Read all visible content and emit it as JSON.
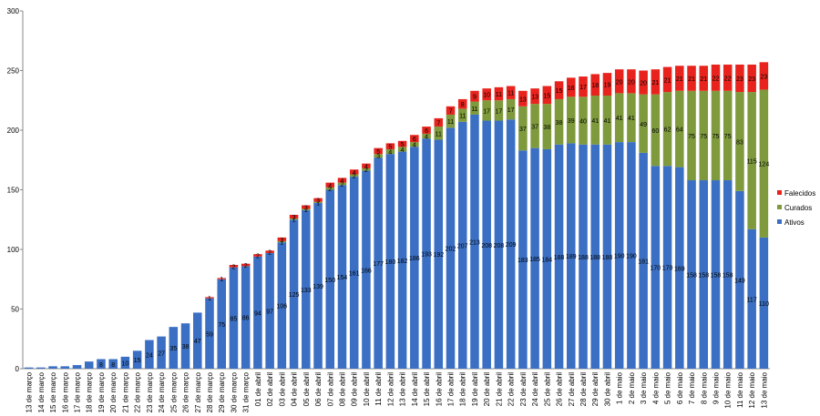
{
  "chart_data": {
    "type": "stacked-bar",
    "categories": [
      "13 de março",
      "14 de março",
      "15 de março",
      "16 de março",
      "17 de março",
      "18 de março",
      "19 de março",
      "20 de março",
      "21 de março",
      "22 de março",
      "23 de março",
      "24 de março",
      "25 de março",
      "26 de março",
      "27 de março",
      "28 de março",
      "29 de março",
      "30 de março",
      "31 de março",
      "01 de abril",
      "02 de abril",
      "03 de abril",
      "04 de abril",
      "05 de abril",
      "06 de abril",
      "07 de abril",
      "08 de abril",
      "09 de abril",
      "10 de abril",
      "11 de abril",
      "12 de abril",
      "13 de abril",
      "14 de abril",
      "15 de abril",
      "16 de abril",
      "17 de abril",
      "18 de abril",
      "19 de abril",
      "20 de abril",
      "21 de abril",
      "22 de abril",
      "23 de abril",
      "24 de abril",
      "25 de abril",
      "26 de abril",
      "27 de abril",
      "28 de abril",
      "29 de abril",
      "30 de abril",
      "1 de maio",
      "2 de maio",
      "3 de maio",
      "4 de maio",
      "5 de maio",
      "6 de maio",
      "7 de maio",
      "8 de maio",
      "9 de maio",
      "10 de maio",
      "11 de maio",
      "12 de maio",
      "13 de maio"
    ],
    "series": [
      {
        "name": "Ativos",
        "color": "#3a6fc4",
        "values": [
          1,
          1,
          2,
          2,
          3,
          6,
          8,
          8,
          10,
          15,
          24,
          27,
          35,
          38,
          47,
          59,
          75,
          85,
          86,
          94,
          97,
          106,
          125,
          133,
          139,
          150,
          154,
          161,
          166,
          177,
          180,
          182,
          186,
          193,
          192,
          202,
          207,
          213,
          208,
          208,
          209,
          183,
          185,
          184,
          188,
          189,
          188,
          188,
          188,
          190,
          190,
          181,
          170,
          170,
          169,
          158,
          158,
          158,
          158,
          149,
          117,
          110
        ]
      },
      {
        "name": "Curados",
        "color": "#7e9a3c",
        "values": [
          0,
          0,
          0,
          0,
          0,
          0,
          0,
          0,
          0,
          0,
          0,
          0,
          0,
          0,
          0,
          0,
          0,
          0,
          0,
          0,
          0,
          1,
          1,
          1,
          1,
          2,
          2,
          2,
          2,
          3,
          4,
          4,
          4,
          4,
          11,
          11,
          11,
          11,
          17,
          17,
          17,
          37,
          37,
          38,
          38,
          39,
          40,
          41,
          41,
          41,
          41,
          49,
          60,
          62,
          64,
          75,
          75,
          75,
          75,
          83,
          115,
          124
        ]
      },
      {
        "name": "Falecidos",
        "color": "#e8231e",
        "values": [
          0,
          0,
          0,
          0,
          0,
          0,
          0,
          0,
          0,
          0,
          0,
          0,
          0,
          0,
          0,
          1,
          1,
          2,
          2,
          2,
          2,
          3,
          3,
          3,
          3,
          4,
          4,
          4,
          4,
          5,
          5,
          5,
          6,
          6,
          7,
          7,
          8,
          9,
          10,
          11,
          11,
          13,
          13,
          15,
          15,
          16,
          17,
          18,
          19,
          20,
          20,
          20,
          21,
          21,
          21,
          21,
          21,
          22,
          22,
          23,
          23,
          23
        ]
      }
    ],
    "ylim": [
      0,
      300
    ],
    "yticks": [
      0,
      50,
      100,
      150,
      200,
      250,
      300
    ],
    "grid": false,
    "legend": "right"
  }
}
